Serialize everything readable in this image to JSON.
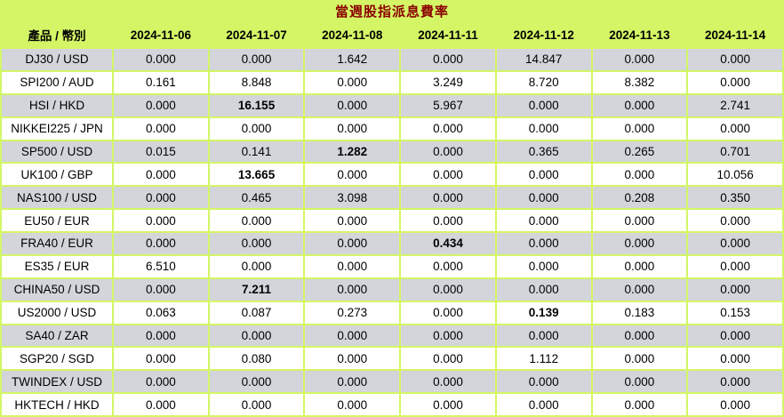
{
  "title": "當週股指派息費率",
  "colors": {
    "accent_green": "#d4f666",
    "stripe_gray": "#d3d5da",
    "row_white": "#ffffff",
    "title_red": "#8b0000",
    "text_black": "#000000"
  },
  "table": {
    "product_header": "產品 / 幣別",
    "date_headers": [
      "2024-11-06",
      "2024-11-07",
      "2024-11-08",
      "2024-11-11",
      "2024-11-12",
      "2024-11-13",
      "2024-11-14"
    ],
    "rows": [
      {
        "product": "DJ30 / USD",
        "values": [
          "0.000",
          "0.000",
          "1.642",
          "0.000",
          "14.847",
          "0.000",
          "0.000"
        ],
        "bold": []
      },
      {
        "product": "SPI200 / AUD",
        "values": [
          "0.161",
          "8.848",
          "0.000",
          "3.249",
          "8.720",
          "8.382",
          "0.000"
        ],
        "bold": []
      },
      {
        "product": "HSI / HKD",
        "values": [
          "0.000",
          "16.155",
          "0.000",
          "5.967",
          "0.000",
          "0.000",
          "2.741"
        ],
        "bold": [
          1
        ]
      },
      {
        "product": "NIKKEI225 / JPN",
        "values": [
          "0.000",
          "0.000",
          "0.000",
          "0.000",
          "0.000",
          "0.000",
          "0.000"
        ],
        "bold": []
      },
      {
        "product": "SP500 / USD",
        "values": [
          "0.015",
          "0.141",
          "1.282",
          "0.000",
          "0.365",
          "0.265",
          "0.701"
        ],
        "bold": [
          2
        ]
      },
      {
        "product": "UK100 / GBP",
        "values": [
          "0.000",
          "13.665",
          "0.000",
          "0.000",
          "0.000",
          "0.000",
          "10.056"
        ],
        "bold": [
          1
        ]
      },
      {
        "product": "NAS100 / USD",
        "values": [
          "0.000",
          "0.465",
          "3.098",
          "0.000",
          "0.000",
          "0.208",
          "0.350"
        ],
        "bold": []
      },
      {
        "product": "EU50 / EUR",
        "values": [
          "0.000",
          "0.000",
          "0.000",
          "0.000",
          "0.000",
          "0.000",
          "0.000"
        ],
        "bold": []
      },
      {
        "product": "FRA40 / EUR",
        "values": [
          "0.000",
          "0.000",
          "0.000",
          "0.434",
          "0.000",
          "0.000",
          "0.000"
        ],
        "bold": [
          3
        ]
      },
      {
        "product": "ES35 / EUR",
        "values": [
          "6.510",
          "0.000",
          "0.000",
          "0.000",
          "0.000",
          "0.000",
          "0.000"
        ],
        "bold": []
      },
      {
        "product": "CHINA50 / USD",
        "values": [
          "0.000",
          "7.211",
          "0.000",
          "0.000",
          "0.000",
          "0.000",
          "0.000"
        ],
        "bold": [
          1
        ]
      },
      {
        "product": "US2000 / USD",
        "values": [
          "0.063",
          "0.087",
          "0.273",
          "0.000",
          "0.139",
          "0.183",
          "0.153"
        ],
        "bold": [
          4
        ]
      },
      {
        "product": "SA40 / ZAR",
        "values": [
          "0.000",
          "0.000",
          "0.000",
          "0.000",
          "0.000",
          "0.000",
          "0.000"
        ],
        "bold": []
      },
      {
        "product": "SGP20 / SGD",
        "values": [
          "0.000",
          "0.080",
          "0.000",
          "0.000",
          "1.112",
          "0.000",
          "0.000"
        ],
        "bold": []
      },
      {
        "product": "TWINDEX / USD",
        "values": [
          "0.000",
          "0.000",
          "0.000",
          "0.000",
          "0.000",
          "0.000",
          "0.000"
        ],
        "bold": []
      },
      {
        "product": "HKTECH / HKD",
        "values": [
          "0.000",
          "0.000",
          "0.000",
          "0.000",
          "0.000",
          "0.000",
          "0.000"
        ],
        "bold": []
      }
    ]
  },
  "chart_data": {
    "type": "table",
    "title": "當週股指派息費率",
    "columns": [
      "產品 / 幣別",
      "2024-11-06",
      "2024-11-07",
      "2024-11-08",
      "2024-11-11",
      "2024-11-12",
      "2024-11-13",
      "2024-11-14"
    ],
    "row_labels": [
      "DJ30 / USD",
      "SPI200 / AUD",
      "HSI / HKD",
      "NIKKEI225 / JPN",
      "SP500 / USD",
      "UK100 / GBP",
      "NAS100 / USD",
      "EU50 / EUR",
      "FRA40 / EUR",
      "ES35 / EUR",
      "CHINA50 / USD",
      "US2000 / USD",
      "SA40 / ZAR",
      "SGP20 / SGD",
      "TWINDEX / USD",
      "HKTECH / HKD"
    ]
  }
}
